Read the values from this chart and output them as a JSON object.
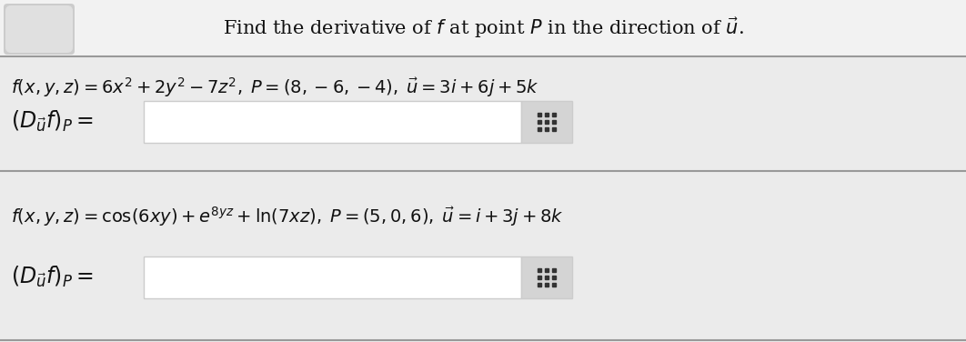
{
  "bg_color": "#ebebeb",
  "header_bg": "#f2f2f2",
  "white": "#ffffff",
  "black": "#111111",
  "input_border": "#cccccc",
  "grid_btn_bg": "#d4d4d4",
  "grid_icon_color": "#333333",
  "sep_color": "#999999",
  "header_text": "Find the derivative of $f$ at point $P$ in the direction of $\\vec{u}$.",
  "eq1": "$f(x, y, z) = 6x^2 + 2y^2 - 7z^2, \\; P = (8, -6, -4), \\; \\vec{u} = 3i + 6j + 5k$",
  "label1": "$\\left(D_{\\vec{u}}f\\right)_P =$",
  "eq2": "$f(x, y, z) = \\cos(6xy) + e^{8yz} + \\ln(7xz), \\; P = (5, 0, 6), \\; \\vec{u} = i + 3j + 8k$",
  "label2": "$\\left(D_{\\vec{u}}f\\right)_P =$",
  "figsize": [
    10.62,
    3.76
  ],
  "dpi": 100
}
